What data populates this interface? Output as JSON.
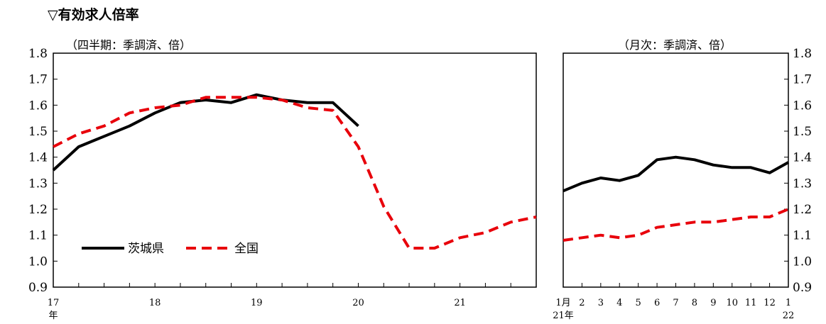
{
  "title": "▽有効求人倍率",
  "notes": {
    "left": "（四半期：季調済、倍）",
    "right": "（月次：季調済、倍）"
  },
  "colors": {
    "ibaraki": "#000000",
    "national": "#e8000b"
  },
  "chart_data": [
    {
      "type": "line",
      "y_ticks": [
        "1.8",
        "1.7",
        "1.6",
        "1.5",
        "1.4",
        "1.3",
        "1.2",
        "1.1",
        "1.0",
        "0.9"
      ],
      "ylim": [
        0.9,
        1.8
      ],
      "x_labels": [
        "17",
        "18",
        "19",
        "20",
        "21"
      ],
      "x_unit_label": "年",
      "series": [
        {
          "name": "茨城県",
          "values": [
            1.35,
            1.44,
            1.48,
            1.52,
            1.57,
            1.61,
            1.62,
            1.61,
            1.64,
            1.62,
            1.61,
            1.61,
            1.52
          ],
          "style": "solid"
        },
        {
          "name": "全国",
          "values": [
            1.44,
            1.49,
            1.52,
            1.57,
            1.59,
            1.6,
            1.63,
            1.63,
            1.63,
            1.62,
            1.59,
            1.58,
            1.44,
            1.21,
            1.05,
            1.05,
            1.09,
            1.11,
            1.15,
            1.17
          ],
          "style": "dashed"
        }
      ],
      "legend": [
        {
          "label": "茨城県"
        },
        {
          "label": "全国"
        }
      ]
    },
    {
      "type": "line",
      "y_ticks": [
        "1.8",
        "1.7",
        "1.6",
        "1.5",
        "1.4",
        "1.3",
        "1.2",
        "1.1",
        "1.0",
        "0.9"
      ],
      "ylim": [
        0.9,
        1.8
      ],
      "x_labels": [
        "1月",
        "2",
        "3",
        "4",
        "5",
        "6",
        "7",
        "8",
        "9",
        "10",
        "11",
        "12",
        "1"
      ],
      "x_sub_labels": {
        "first": "21年",
        "last": "22"
      },
      "series": [
        {
          "name": "茨城県",
          "values": [
            1.27,
            1.3,
            1.32,
            1.31,
            1.33,
            1.39,
            1.4,
            1.39,
            1.37,
            1.36,
            1.36,
            1.34,
            1.38
          ],
          "style": "solid"
        },
        {
          "name": "全国",
          "values": [
            1.08,
            1.09,
            1.1,
            1.09,
            1.1,
            1.13,
            1.14,
            1.15,
            1.15,
            1.16,
            1.17,
            1.17,
            1.2
          ],
          "style": "dashed"
        }
      ]
    }
  ]
}
